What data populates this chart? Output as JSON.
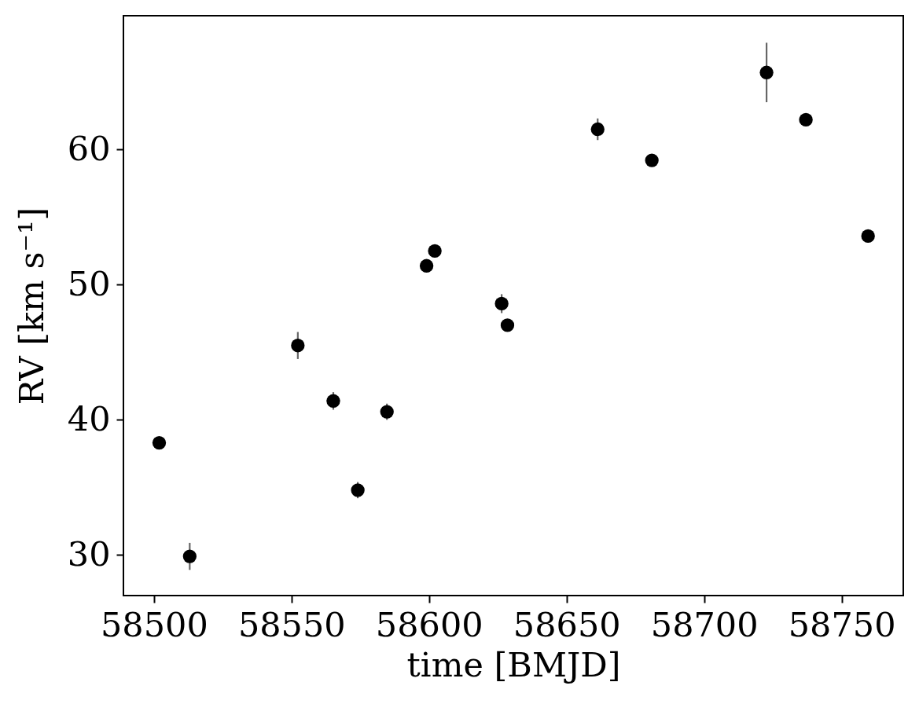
{
  "chart_data": {
    "type": "scatter",
    "xlabel": "time [BMJD]",
    "ylabel": "RV [km s⁻¹]",
    "x": [
      58501.9,
      58513.0,
      58552.3,
      58565.2,
      58574.1,
      58584.7,
      58599.1,
      58602.1,
      58626.4,
      58628.5,
      58661.3,
      58681.0,
      58722.7,
      58737.0,
      58759.6
    ],
    "series": [
      {
        "color": "#000000",
        "values": [
          38.3,
          29.9,
          45.5,
          41.4,
          34.8,
          40.6,
          51.4,
          52.5,
          48.6,
          47.0,
          61.5,
          59.2,
          65.7,
          62.2,
          53.6
        ],
        "errors": [
          null,
          1.0,
          1.0,
          0.65,
          0.6,
          0.6,
          null,
          null,
          0.7,
          null,
          0.8,
          null,
          2.2,
          null,
          null
        ]
      }
    ],
    "xlim": [
      58488.9,
      58772.4
    ],
    "ylim": [
      27.0,
      69.9
    ],
    "xticks": [
      58500,
      58550,
      58600,
      58650,
      58700,
      58750
    ],
    "yticks": [
      30,
      40,
      50,
      60
    ],
    "grid": false,
    "marker": "circle"
  }
}
